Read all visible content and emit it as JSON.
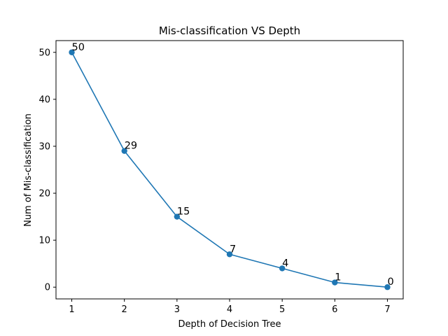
{
  "chart_data": {
    "type": "line",
    "title": "Mis-classification VS Depth",
    "xlabel": "Depth of Decision Tree",
    "ylabel": "Num of Mis-classification",
    "x": [
      1,
      2,
      3,
      4,
      5,
      6,
      7
    ],
    "series": [
      {
        "values": [
          50,
          29,
          15,
          7,
          4,
          1,
          0
        ]
      }
    ],
    "data_labels": [
      "50",
      "29",
      "15",
      "7",
      "4",
      "1",
      "0"
    ],
    "xticks": [
      "1",
      "2",
      "3",
      "4",
      "5",
      "6",
      "7"
    ],
    "yticks": [
      "0",
      "10",
      "20",
      "30",
      "40",
      "50"
    ],
    "xlim": [
      0.7,
      7.3
    ],
    "ylim": [
      -2.5,
      52.5
    ],
    "grid": false,
    "legend": "none",
    "colors": {
      "line": "#1f77b4",
      "marker": "#1f77b4",
      "axes": "#000000"
    }
  }
}
